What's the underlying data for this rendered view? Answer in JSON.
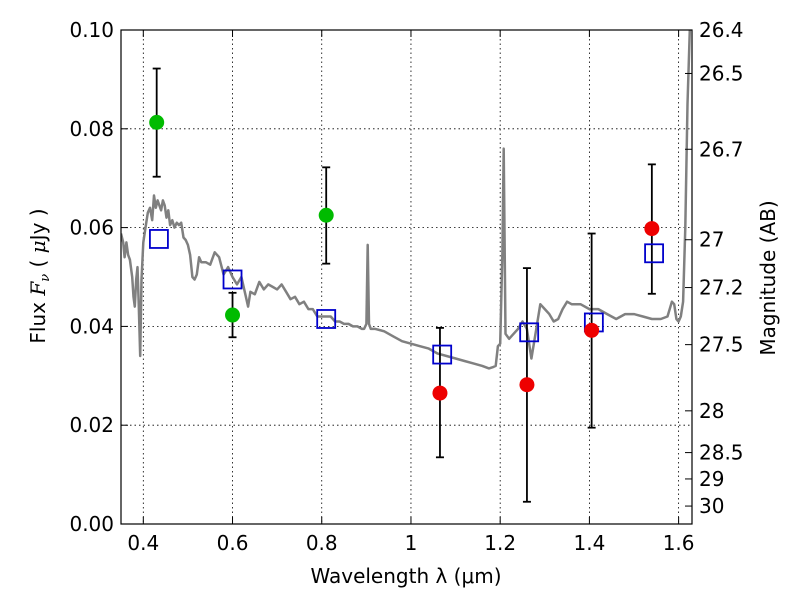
{
  "chart_data": {
    "type": "scatter",
    "title": "",
    "xlabel": "Wavelength  λ (μm)",
    "ylabel_parts": [
      "Flux ",
      "F",
      "ν",
      " ( ",
      "μ",
      "Jy )"
    ],
    "ylabel_right": "Magnitude (AB)",
    "xlim": [
      0.35,
      1.63
    ],
    "ylim": [
      0.0,
      0.1
    ],
    "grid": true,
    "xticks": [
      {
        "value": 0.4,
        "label": "0.4"
      },
      {
        "value": 0.6,
        "label": "0.6"
      },
      {
        "value": 0.8,
        "label": "0.8"
      },
      {
        "value": 1.0,
        "label": "1"
      },
      {
        "value": 1.2,
        "label": "1.2"
      },
      {
        "value": 1.4,
        "label": "1.4"
      },
      {
        "value": 1.6,
        "label": "1.6"
      }
    ],
    "yticks": [
      {
        "value": 0.0,
        "label": "0.00"
      },
      {
        "value": 0.02,
        "label": "0.02"
      },
      {
        "value": 0.04,
        "label": "0.04"
      },
      {
        "value": 0.06,
        "label": "0.06"
      },
      {
        "value": 0.08,
        "label": "0.08"
      },
      {
        "value": 0.1,
        "label": "0.10"
      }
    ],
    "right_ticks": [
      {
        "value": 26.4,
        "label": "26.4"
      },
      {
        "value": 26.5,
        "label": "26.5"
      },
      {
        "value": 26.7,
        "label": "26.7"
      },
      {
        "value": 27.0,
        "label": "27"
      },
      {
        "value": 27.2,
        "label": "27.2"
      },
      {
        "value": 27.5,
        "label": "27.5"
      },
      {
        "value": 28.0,
        "label": "28"
      },
      {
        "value": 28.5,
        "label": "28.5"
      },
      {
        "value": 29.0,
        "label": "29"
      },
      {
        "value": 30.0,
        "label": "30"
      }
    ],
    "series": [
      {
        "kind": "model_spectrum",
        "color": "#808080",
        "points": [
          [
            0.35,
            0.0588
          ],
          [
            0.355,
            0.057
          ],
          [
            0.358,
            0.054
          ],
          [
            0.362,
            0.057
          ],
          [
            0.366,
            0.0545
          ],
          [
            0.37,
            0.0535
          ],
          [
            0.375,
            0.05
          ],
          [
            0.378,
            0.046
          ],
          [
            0.381,
            0.044
          ],
          [
            0.384,
            0.0495
          ],
          [
            0.387,
            0.052
          ],
          [
            0.39,
            0.044
          ],
          [
            0.393,
            0.034
          ],
          [
            0.396,
            0.0495
          ],
          [
            0.4,
            0.057
          ],
          [
            0.405,
            0.06
          ],
          [
            0.41,
            0.063
          ],
          [
            0.415,
            0.064
          ],
          [
            0.42,
            0.0615
          ],
          [
            0.424,
            0.0665
          ],
          [
            0.428,
            0.064
          ],
          [
            0.432,
            0.0655
          ],
          [
            0.436,
            0.0645
          ],
          [
            0.44,
            0.0635
          ],
          [
            0.444,
            0.0655
          ],
          [
            0.448,
            0.0645
          ],
          [
            0.452,
            0.062
          ],
          [
            0.456,
            0.0635
          ],
          [
            0.46,
            0.0605
          ],
          [
            0.465,
            0.0615
          ],
          [
            0.47,
            0.06
          ],
          [
            0.475,
            0.061
          ],
          [
            0.48,
            0.0605
          ],
          [
            0.485,
            0.061
          ],
          [
            0.49,
            0.058
          ],
          [
            0.495,
            0.0575
          ],
          [
            0.5,
            0.0565
          ],
          [
            0.505,
            0.0545
          ],
          [
            0.51,
            0.05
          ],
          [
            0.515,
            0.0495
          ],
          [
            0.52,
            0.0505
          ],
          [
            0.525,
            0.054
          ],
          [
            0.53,
            0.053
          ],
          [
            0.54,
            0.053
          ],
          [
            0.55,
            0.0525
          ],
          [
            0.56,
            0.055
          ],
          [
            0.57,
            0.054
          ],
          [
            0.58,
            0.0505
          ],
          [
            0.59,
            0.052
          ],
          [
            0.6,
            0.05
          ],
          [
            0.61,
            0.0485
          ],
          [
            0.62,
            0.05
          ],
          [
            0.63,
            0.046
          ],
          [
            0.635,
            0.044
          ],
          [
            0.64,
            0.047
          ],
          [
            0.65,
            0.0465
          ],
          [
            0.66,
            0.049
          ],
          [
            0.67,
            0.0475
          ],
          [
            0.68,
            0.0485
          ],
          [
            0.69,
            0.048
          ],
          [
            0.7,
            0.0475
          ],
          [
            0.71,
            0.0485
          ],
          [
            0.72,
            0.047
          ],
          [
            0.73,
            0.0455
          ],
          [
            0.74,
            0.046
          ],
          [
            0.75,
            0.0445
          ],
          [
            0.76,
            0.045
          ],
          [
            0.77,
            0.0435
          ],
          [
            0.78,
            0.0435
          ],
          [
            0.79,
            0.042
          ],
          [
            0.8,
            0.042
          ],
          [
            0.81,
            0.042
          ],
          [
            0.82,
            0.042
          ],
          [
            0.83,
            0.041
          ],
          [
            0.84,
            0.041
          ],
          [
            0.85,
            0.0405
          ],
          [
            0.86,
            0.0405
          ],
          [
            0.87,
            0.04
          ],
          [
            0.88,
            0.04
          ],
          [
            0.89,
            0.0395
          ],
          [
            0.895,
            0.0395
          ],
          [
            0.9,
            0.0405
          ],
          [
            0.903,
            0.0565
          ],
          [
            0.906,
            0.0405
          ],
          [
            0.91,
            0.0395
          ],
          [
            0.92,
            0.0395
          ],
          [
            0.94,
            0.039
          ],
          [
            0.96,
            0.038
          ],
          [
            0.98,
            0.037
          ],
          [
            1.0,
            0.0365
          ],
          [
            1.02,
            0.036
          ],
          [
            1.04,
            0.0355
          ],
          [
            1.06,
            0.0345
          ],
          [
            1.08,
            0.034
          ],
          [
            1.1,
            0.0335
          ],
          [
            1.12,
            0.033
          ],
          [
            1.14,
            0.0325
          ],
          [
            1.16,
            0.032
          ],
          [
            1.175,
            0.0315
          ],
          [
            1.185,
            0.0318
          ],
          [
            1.19,
            0.032
          ],
          [
            1.195,
            0.036
          ],
          [
            1.2,
            0.0365
          ],
          [
            1.205,
            0.055
          ],
          [
            1.208,
            0.076
          ],
          [
            1.212,
            0.0385
          ],
          [
            1.22,
            0.0375
          ],
          [
            1.24,
            0.0395
          ],
          [
            1.25,
            0.041
          ],
          [
            1.26,
            0.0395
          ],
          [
            1.27,
            0.0335
          ],
          [
            1.28,
            0.039
          ],
          [
            1.29,
            0.0445
          ],
          [
            1.3,
            0.0435
          ],
          [
            1.31,
            0.0425
          ],
          [
            1.32,
            0.041
          ],
          [
            1.33,
            0.0415
          ],
          [
            1.34,
            0.0435
          ],
          [
            1.35,
            0.045
          ],
          [
            1.36,
            0.0445
          ],
          [
            1.38,
            0.0445
          ],
          [
            1.4,
            0.0435
          ],
          [
            1.42,
            0.0435
          ],
          [
            1.44,
            0.0425
          ],
          [
            1.46,
            0.0415
          ],
          [
            1.48,
            0.0425
          ],
          [
            1.5,
            0.0425
          ],
          [
            1.52,
            0.042
          ],
          [
            1.54,
            0.0415
          ],
          [
            1.56,
            0.0415
          ],
          [
            1.575,
            0.042
          ],
          [
            1.585,
            0.045
          ],
          [
            1.59,
            0.0445
          ],
          [
            1.595,
            0.0415
          ],
          [
            1.6,
            0.041
          ],
          [
            1.605,
            0.042
          ],
          [
            1.61,
            0.045
          ],
          [
            1.615,
            0.06
          ],
          [
            1.62,
            0.085
          ],
          [
            1.625,
            0.1
          ]
        ]
      },
      {
        "kind": "points_with_errors",
        "color": "#00bb00",
        "points": [
          {
            "x": 0.43,
            "y": 0.0813,
            "ylo": 0.0703,
            "yhi": 0.0922
          },
          {
            "x": 0.6,
            "y": 0.0423,
            "ylo": 0.0378,
            "yhi": 0.0468
          },
          {
            "x": 0.81,
            "y": 0.0625,
            "ylo": 0.0527,
            "yhi": 0.0722
          }
        ]
      },
      {
        "kind": "points_with_errors",
        "color": "#ee0000",
        "points": [
          {
            "x": 1.065,
            "y": 0.0265,
            "ylo": 0.0135,
            "yhi": 0.0397
          },
          {
            "x": 1.26,
            "y": 0.0282,
            "ylo": 0.0045,
            "yhi": 0.0518
          },
          {
            "x": 1.405,
            "y": 0.0392,
            "ylo": 0.0195,
            "yhi": 0.0588
          },
          {
            "x": 1.54,
            "y": 0.0598,
            "ylo": 0.0466,
            "yhi": 0.0728
          }
        ]
      },
      {
        "kind": "model_points",
        "color": "#0000cc",
        "points": [
          {
            "x": 0.435,
            "y": 0.0577
          },
          {
            "x": 0.6,
            "y": 0.0495
          },
          {
            "x": 0.81,
            "y": 0.0415
          },
          {
            "x": 1.07,
            "y": 0.0343
          },
          {
            "x": 1.265,
            "y": 0.0388
          },
          {
            "x": 1.41,
            "y": 0.0408
          },
          {
            "x": 1.545,
            "y": 0.0548
          }
        ]
      }
    ]
  }
}
